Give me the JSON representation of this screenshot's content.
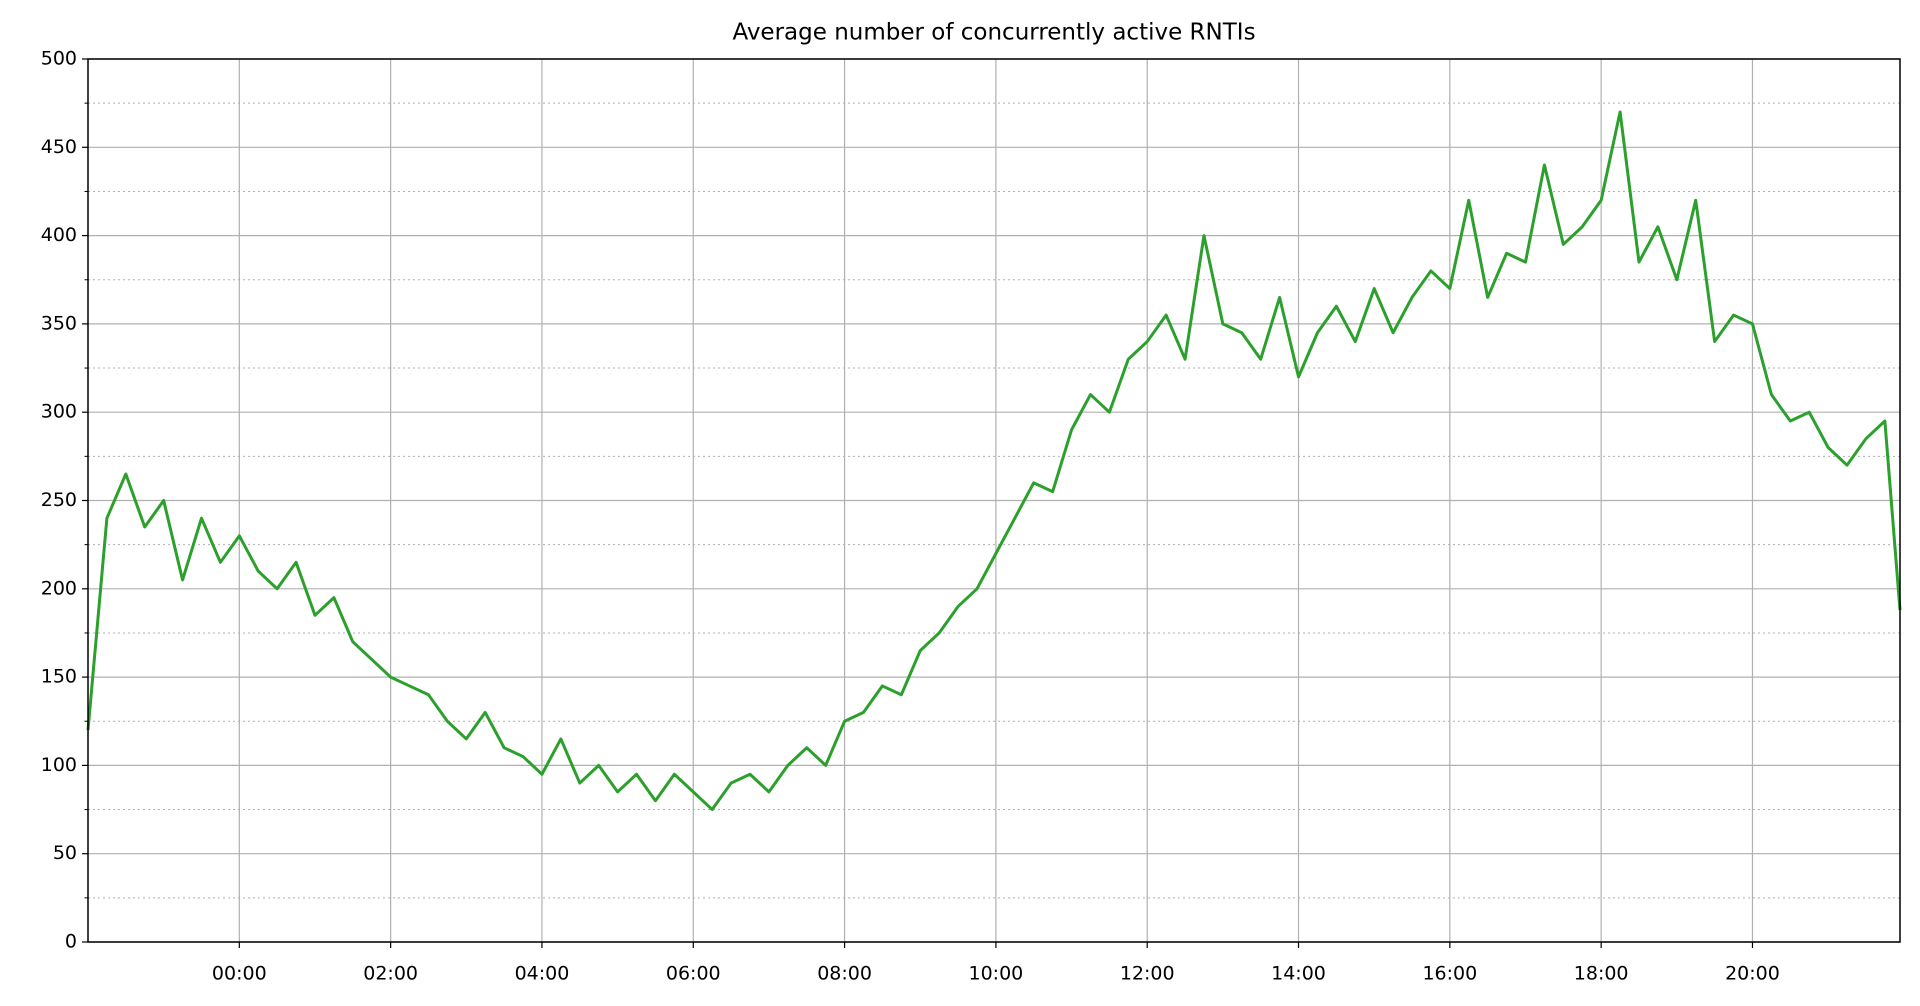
{
  "chart_data": {
    "type": "line",
    "title": "Average number of concurrently active RNTIs",
    "series": [
      {
        "name": "active RNTIs",
        "color": "#2ca02c",
        "x": [
          -2,
          -1.75,
          -1.5,
          -1.25,
          -1,
          -0.75,
          -0.5,
          -0.25,
          0,
          0.25,
          0.5,
          0.75,
          1,
          1.25,
          1.5,
          1.75,
          2,
          2.25,
          2.5,
          2.75,
          3,
          3.25,
          3.5,
          3.75,
          4,
          4.25,
          4.5,
          4.75,
          5,
          5.25,
          5.5,
          5.75,
          6,
          6.25,
          6.5,
          6.75,
          7,
          7.25,
          7.5,
          7.75,
          8,
          8.25,
          8.5,
          8.75,
          9,
          9.25,
          9.5,
          9.75,
          10,
          10.25,
          10.5,
          10.75,
          11,
          11.25,
          11.5,
          11.75,
          12,
          12.25,
          12.5,
          12.75,
          13,
          13.25,
          13.5,
          13.75,
          14,
          14.25,
          14.5,
          14.75,
          15,
          15.25,
          15.5,
          15.75,
          16,
          16.25,
          16.5,
          16.75,
          17,
          17.25,
          17.5,
          17.75,
          18,
          18.25,
          18.5,
          18.75,
          19,
          19.25,
          19.5,
          19.75,
          20,
          20.25,
          20.5,
          20.75,
          21,
          21.25,
          21.5,
          21.75,
          21.95
        ],
        "values": [
          120,
          240,
          265,
          235,
          250,
          205,
          240,
          215,
          230,
          210,
          200,
          215,
          185,
          195,
          170,
          160,
          150,
          145,
          140,
          125,
          115,
          130,
          110,
          105,
          95,
          115,
          90,
          100,
          85,
          95,
          80,
          95,
          85,
          75,
          90,
          95,
          85,
          100,
          110,
          100,
          125,
          130,
          145,
          140,
          165,
          175,
          190,
          200,
          220,
          240,
          260,
          255,
          290,
          310,
          300,
          330,
          340,
          355,
          330,
          400,
          350,
          345,
          330,
          365,
          320,
          345,
          360,
          340,
          370,
          345,
          365,
          380,
          370,
          420,
          365,
          390,
          385,
          440,
          395,
          405,
          420,
          470,
          385,
          405,
          375,
          420,
          340,
          355,
          350,
          310,
          295,
          300,
          280,
          270,
          285,
          295,
          188
        ]
      }
    ],
    "xlim": [
      -2,
      21.95
    ],
    "xticks": [
      {
        "value": 0,
        "label": "00:00"
      },
      {
        "value": 2,
        "label": "02:00"
      },
      {
        "value": 4,
        "label": "04:00"
      },
      {
        "value": 6,
        "label": "06:00"
      },
      {
        "value": 8,
        "label": "08:00"
      },
      {
        "value": 10,
        "label": "10:00"
      },
      {
        "value": 12,
        "label": "12:00"
      },
      {
        "value": 14,
        "label": "14:00"
      },
      {
        "value": 16,
        "label": "16:00"
      },
      {
        "value": 18,
        "label": "18:00"
      },
      {
        "value": 20,
        "label": "20:00"
      }
    ],
    "ylim": [
      0,
      500
    ],
    "yticks": [
      0,
      50,
      100,
      150,
      200,
      250,
      300,
      350,
      400,
      450,
      500
    ],
    "yminorticks": [
      25,
      75,
      125,
      175,
      225,
      275,
      325,
      375,
      425,
      475
    ],
    "grid": true
  }
}
